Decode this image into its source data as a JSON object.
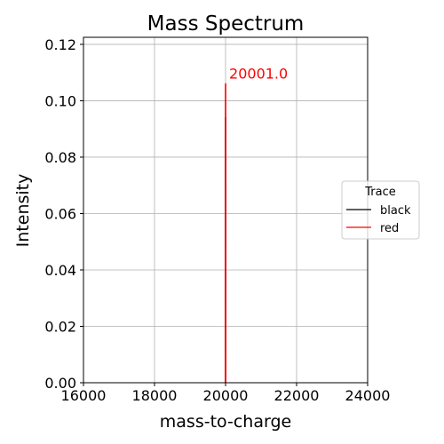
{
  "chart_data": {
    "type": "line",
    "title": "Mass Spectrum",
    "xlabel": "mass-to-charge",
    "ylabel": "Intensity",
    "xlim": [
      16000,
      24000
    ],
    "ylim": [
      0,
      0.1225
    ],
    "xticks": [
      "16000",
      "18000",
      "20000",
      "22000",
      "24000"
    ],
    "yticks": [
      "0.00",
      "0.02",
      "0.04",
      "0.06",
      "0.08",
      "0.10",
      "0.12"
    ],
    "xtick_values": [
      16000,
      18000,
      20000,
      22000,
      24000
    ],
    "ytick_values": [
      0,
      0.02,
      0.04,
      0.06,
      0.08,
      0.1,
      0.12
    ],
    "grid": true,
    "legend": {
      "title": "Trace",
      "position": "right"
    },
    "series": [
      {
        "name": "black",
        "color": "#000000",
        "x": [
          19995,
          19997,
          19998,
          19999,
          20000,
          20001,
          20002,
          20003,
          20005
        ],
        "y": [
          0,
          0.004,
          0.03,
          0.07,
          0.09,
          0.094,
          0.06,
          0.02,
          0
        ]
      },
      {
        "name": "red",
        "color": "#ff0000",
        "x": [
          19995,
          19997,
          19998,
          19999,
          20000,
          20001,
          20002,
          20003,
          20005
        ],
        "y": [
          0,
          0.005,
          0.035,
          0.08,
          0.102,
          0.106,
          0.07,
          0.025,
          0
        ]
      }
    ],
    "annotations": [
      {
        "text": "20001.0",
        "x": 20001,
        "y": 0.106,
        "color": "#ff0000"
      }
    ]
  }
}
